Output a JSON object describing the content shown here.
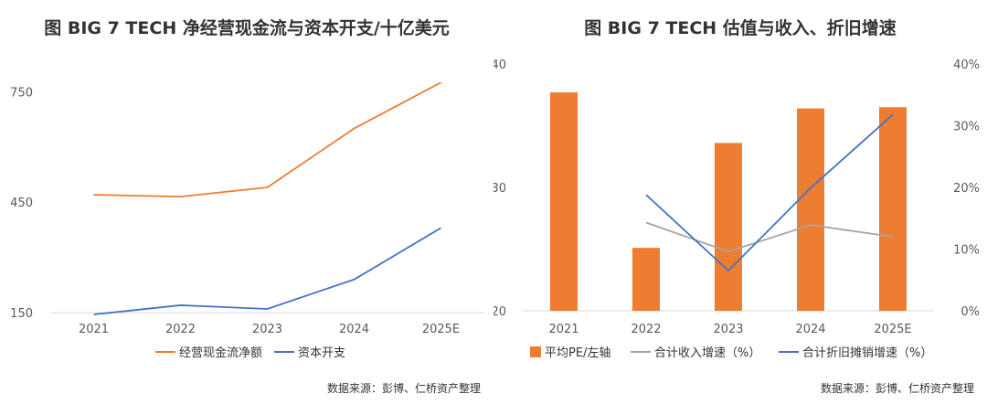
{
  "left": {
    "title": "图   BIG 7 TECH 净经营现金流与资本开支/十亿美元",
    "source": "数据来源：彭博、仁桥资产整理"
  },
  "right": {
    "title": "图   BIG 7 TECH 估值与收入、折旧增速",
    "source": "数据来源：彭博、仁桥资产整理"
  },
  "chart_data": [
    {
      "type": "line",
      "title": "图   BIG 7 TECH 净经营现金流与资本开支/十亿美元",
      "categories": [
        "2021",
        "2022",
        "2023",
        "2024",
        "2025E"
      ],
      "yticks": [
        "150",
        "450",
        "750"
      ],
      "ylim": [
        150,
        850
      ],
      "series": [
        {
          "name": "经营现金流净额",
          "color": "#ED7D31",
          "values": [
            470,
            465,
            490,
            650,
            775
          ]
        },
        {
          "name": "资本开支",
          "color": "#4472C4",
          "values": [
            145,
            170,
            160,
            240,
            380
          ]
        }
      ],
      "legend": "bottom",
      "grid": false
    },
    {
      "type": "bar+line",
      "title": "图   BIG 7 TECH 估值与收入、折旧增速",
      "categories": [
        "2021",
        "2022",
        "2023",
        "2024",
        "2025E"
      ],
      "left_yticks": [
        "20",
        "30",
        "40"
      ],
      "left_ylim": [
        20,
        40
      ],
      "right_yticks": [
        "0%",
        "10%",
        "20%",
        "30%",
        "40%"
      ],
      "right_ylim": [
        0,
        40
      ],
      "series": [
        {
          "name": "平均PE/左轴",
          "kind": "bar",
          "axis": "left",
          "color": "#ED7D31",
          "values": [
            37.7,
            25.1,
            33.6,
            36.4,
            36.5
          ]
        },
        {
          "name": "合计收入增速（%）",
          "kind": "line",
          "axis": "right",
          "color": "#A5A5A5",
          "values": [
            null,
            14.3,
            9.6,
            13.9,
            12.0
          ]
        },
        {
          "name": "合计折旧摊销增速（%）",
          "kind": "line",
          "axis": "right",
          "color": "#4472C4",
          "values": [
            null,
            18.8,
            6.5,
            19.9,
            31.8
          ]
        }
      ],
      "legend": "bottom",
      "grid": false
    }
  ]
}
